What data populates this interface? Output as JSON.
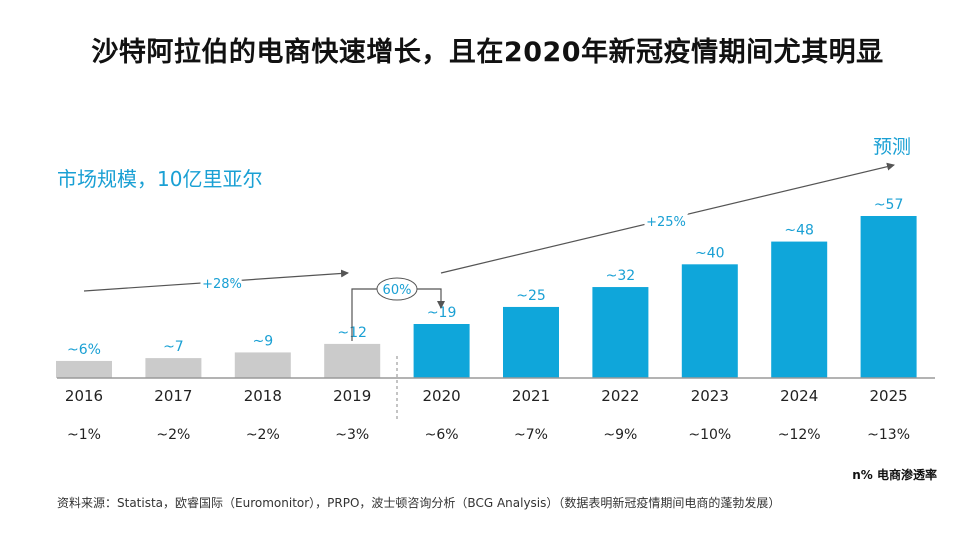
{
  "title": "沙特阿拉伯的电商快速增长，且在2020年新冠疫情期间尤其明显",
  "subtitle": "市场规模，10亿里亚尔",
  "forecast_label": "预测",
  "penetration_legend": "n% 电商渗透率",
  "source": "资料来源：Statista，欧睿国际（Euromonitor），PRPO，波士顿咨询分析（BCG Analysis）（数据表明新冠疫情期间电商的蓬勃发展）",
  "colors": {
    "historical": "#cbcbcb",
    "forecast": "#0fa6da",
    "accent_text": "#1aa0d4",
    "arrow": "#555555"
  },
  "chart_data": {
    "type": "bar",
    "categories": [
      "2016",
      "2017",
      "2018",
      "2019",
      "2020",
      "2021",
      "2022",
      "2023",
      "2024",
      "2025"
    ],
    "values": [
      6,
      7,
      9,
      12,
      19,
      25,
      32,
      40,
      48,
      57
    ],
    "value_labels": [
      "~6%",
      "~7",
      "~9",
      "~12",
      "~19",
      "~25",
      "~32",
      "~40",
      "~48",
      "~57"
    ],
    "penetration": [
      "~1%",
      "~2%",
      "~2%",
      "~3%",
      "~6%",
      "~7%",
      "~9%",
      "~10%",
      "~12%",
      "~13%"
    ],
    "forecast_start_index": 4,
    "annotations": {
      "cagr_historical": "+28%",
      "cagr_forecast": "+25%",
      "growth_2020": "60%"
    }
  }
}
